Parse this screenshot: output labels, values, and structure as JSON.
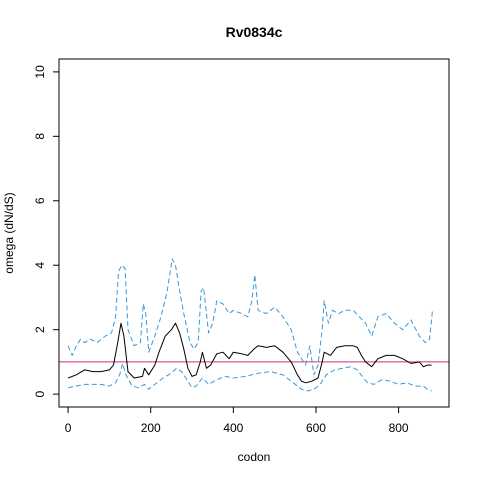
{
  "chart_data": {
    "type": "line",
    "title": "Rv0834c",
    "xlabel": "codon",
    "ylabel": "omega (dN/dS)",
    "xlim": [
      -22,
      922
    ],
    "ylim": [
      -0.4,
      10.4
    ],
    "xticks": [
      0,
      200,
      400,
      600,
      800
    ],
    "yticks": [
      0,
      2,
      4,
      6,
      8,
      10
    ],
    "grid": false,
    "colors": {
      "estimate": "#000000",
      "ci": "#3399dd",
      "reference": "#cc3377"
    },
    "reference_line": {
      "y": 1
    },
    "series": [
      {
        "role": "estimate",
        "line_style": "solid",
        "x": [
          0,
          20,
          40,
          60,
          80,
          100,
          110,
          120,
          128,
          135,
          145,
          160,
          180,
          185,
          195,
          210,
          220,
          235,
          250,
          260,
          270,
          280,
          290,
          300,
          310,
          320,
          325,
          335,
          345,
          360,
          375,
          390,
          400,
          420,
          435,
          450,
          460,
          480,
          500,
          520,
          540,
          555,
          565,
          575,
          590,
          605,
          615,
          620,
          635,
          650,
          670,
          690,
          700,
          710,
          720,
          735,
          750,
          770,
          790,
          810,
          830,
          850,
          860,
          870,
          880
        ],
        "y": [
          0.5,
          0.6,
          0.75,
          0.7,
          0.7,
          0.75,
          0.9,
          1.6,
          2.2,
          1.8,
          0.7,
          0.5,
          0.55,
          0.8,
          0.6,
          0.9,
          1.3,
          1.8,
          2.0,
          2.2,
          1.9,
          1.4,
          0.8,
          0.55,
          0.6,
          1.0,
          1.3,
          0.8,
          0.9,
          1.25,
          1.3,
          1.1,
          1.3,
          1.25,
          1.2,
          1.4,
          1.5,
          1.45,
          1.5,
          1.3,
          1.0,
          0.6,
          0.4,
          0.35,
          0.4,
          0.5,
          1.0,
          1.3,
          1.2,
          1.45,
          1.5,
          1.5,
          1.45,
          1.2,
          1.0,
          0.85,
          1.1,
          1.2,
          1.2,
          1.1,
          0.95,
          1.0,
          0.85,
          0.9,
          0.9
        ]
      },
      {
        "role": "upper",
        "line_style": "dashed",
        "x": [
          0,
          10,
          20,
          30,
          40,
          55,
          70,
          90,
          105,
          115,
          122,
          130,
          138,
          145,
          160,
          175,
          182,
          188,
          195,
          210,
          225,
          240,
          252,
          260,
          270,
          280,
          295,
          305,
          315,
          322,
          328,
          340,
          350,
          360,
          375,
          390,
          400,
          420,
          435,
          445,
          452,
          460,
          480,
          500,
          520,
          540,
          555,
          565,
          575,
          585,
          595,
          605,
          615,
          620,
          630,
          640,
          655,
          670,
          690,
          705,
          720,
          735,
          750,
          770,
          790,
          810,
          830,
          850,
          865,
          875,
          882
        ],
        "y": [
          1.5,
          1.2,
          1.5,
          1.7,
          1.6,
          1.7,
          1.6,
          1.8,
          1.9,
          2.4,
          3.8,
          4.0,
          3.9,
          2.0,
          1.5,
          1.6,
          2.8,
          2.5,
          1.3,
          1.8,
          2.4,
          3.2,
          4.2,
          4.0,
          3.2,
          2.5,
          1.6,
          1.4,
          1.6,
          3.2,
          3.3,
          1.9,
          2.2,
          2.9,
          2.8,
          2.5,
          2.6,
          2.5,
          2.4,
          2.9,
          3.7,
          2.6,
          2.5,
          2.7,
          2.4,
          2.0,
          1.3,
          1.1,
          0.9,
          1.5,
          0.6,
          0.9,
          2.0,
          2.9,
          2.2,
          2.6,
          2.5,
          2.6,
          2.6,
          2.4,
          2.2,
          1.8,
          2.4,
          2.5,
          2.2,
          2.0,
          2.3,
          1.8,
          1.6,
          1.7,
          2.6
        ]
      },
      {
        "role": "lower",
        "line_style": "dashed",
        "x": [
          0,
          20,
          40,
          60,
          80,
          100,
          115,
          125,
          132,
          140,
          155,
          170,
          185,
          195,
          210,
          230,
          250,
          262,
          275,
          290,
          300,
          310,
          325,
          340,
          360,
          380,
          400,
          430,
          460,
          490,
          520,
          545,
          565,
          580,
          595,
          610,
          625,
          645,
          665,
          685,
          700,
          715,
          725,
          740,
          760,
          780,
          800,
          820,
          840,
          860,
          870,
          880
        ],
        "y": [
          0.2,
          0.25,
          0.3,
          0.3,
          0.3,
          0.25,
          0.35,
          0.6,
          0.95,
          0.6,
          0.25,
          0.2,
          0.3,
          0.15,
          0.3,
          0.5,
          0.65,
          0.8,
          0.7,
          0.4,
          0.2,
          0.25,
          0.5,
          0.3,
          0.45,
          0.55,
          0.5,
          0.55,
          0.65,
          0.7,
          0.6,
          0.35,
          0.15,
          0.1,
          0.15,
          0.3,
          0.6,
          0.75,
          0.8,
          0.85,
          0.75,
          0.5,
          0.35,
          0.3,
          0.45,
          0.4,
          0.3,
          0.35,
          0.25,
          0.25,
          0.15,
          0.1
        ]
      }
    ]
  }
}
